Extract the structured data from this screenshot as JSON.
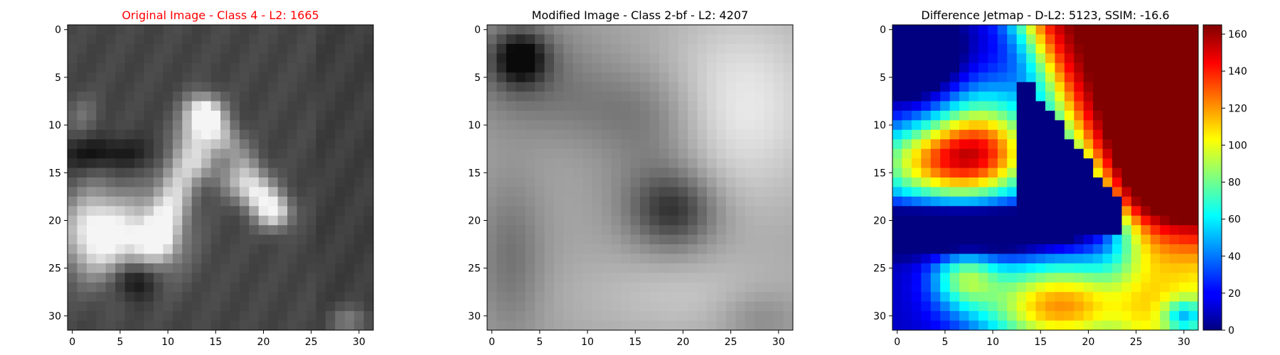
{
  "figure": {
    "panels": [
      {
        "title": "Original Image - Class 4 - L2: 1665",
        "title_color": "#ff0000",
        "colormap": "gray",
        "x_ticks": [
          "0",
          "5",
          "10",
          "15",
          "20",
          "25",
          "30"
        ],
        "y_ticks": [
          "0",
          "5",
          "10",
          "15",
          "20",
          "25",
          "30"
        ]
      },
      {
        "title": "Modified Image - Class 2-bf - L2: 4207",
        "title_color": "#000000",
        "colormap": "gray",
        "x_ticks": [
          "0",
          "5",
          "10",
          "15",
          "20",
          "25",
          "30"
        ],
        "y_ticks": [
          "0",
          "5",
          "10",
          "15",
          "20",
          "25",
          "30"
        ]
      },
      {
        "title": "Difference Jetmap - D-L2: 5123, SSIM: -16.6",
        "title_color": "#000000",
        "colormap": "jet",
        "x_ticks": [
          "0",
          "5",
          "10",
          "15",
          "20",
          "25",
          "30"
        ],
        "y_ticks": [
          "0",
          "5",
          "10",
          "15",
          "20",
          "25",
          "30"
        ]
      }
    ],
    "colorbar": {
      "ticks": [
        "0",
        "20",
        "40",
        "60",
        "80",
        "100",
        "120",
        "140",
        "160"
      ],
      "range": [
        0,
        165
      ]
    }
  },
  "chart_data": [
    {
      "type": "heatmap",
      "title": "Original Image - Class 4 - L2: 1665",
      "colormap": "gray",
      "xlim": [
        -0.5,
        31.5
      ],
      "ylim": [
        31.5,
        -0.5
      ],
      "grid_size": [
        32,
        32
      ],
      "description_values": "grayscale image 32x32, mostly dark with bright curved shape on lower-left"
    },
    {
      "type": "heatmap",
      "title": "Modified Image - Class 2-bf - L2: 4207",
      "colormap": "gray",
      "xlim": [
        -0.5,
        31.5
      ],
      "ylim": [
        31.5,
        -0.5
      ],
      "grid_size": [
        32,
        32
      ]
    },
    {
      "type": "heatmap",
      "title": "Difference Jetmap - D-L2: 5123, SSIM: -16.6",
      "colormap": "jet",
      "xlim": [
        -0.5,
        31.5
      ],
      "ylim": [
        31.5,
        -0.5
      ],
      "grid_size": [
        32,
        32
      ],
      "value_range": [
        0,
        165
      ]
    }
  ]
}
